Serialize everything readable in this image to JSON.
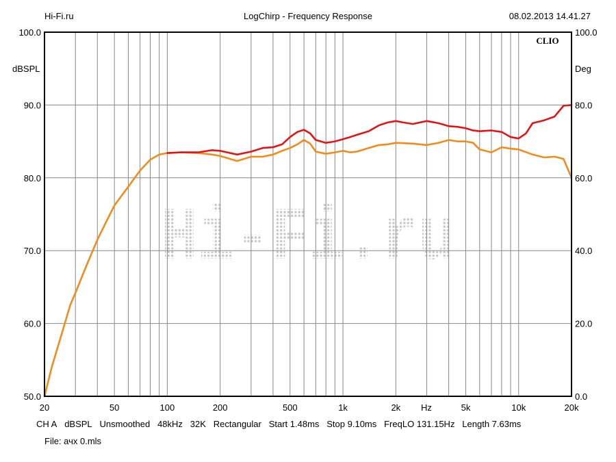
{
  "header": {
    "left": "Hi-Fi.ru",
    "center": "LogChirp - Frequency Response",
    "right": "08.02.2013 14.41.27"
  },
  "brand": "CLIO",
  "watermark_text": "Hi-Fi.ru",
  "axes": {
    "left_unit": "dBSPL",
    "right_unit": "Deg",
    "x_unit": "Hz",
    "left_ticks": [
      "100.0",
      "90.0",
      "80.0",
      "70.0",
      "60.0",
      "50.0"
    ],
    "right_ticks": [
      "100.0",
      "80.0",
      "60.0",
      "40.0",
      "20.0",
      "0.0"
    ],
    "x_ticks": [
      "20",
      "50",
      "100",
      "200",
      "500",
      "1k",
      "2k",
      "5k",
      "10k",
      "20k"
    ]
  },
  "footer": {
    "params": [
      "CH A",
      "dBSPL",
      "Unsmoothed",
      "48kHz",
      "32K",
      "Rectangular",
      "Start 1.48ms",
      "Stop 9.10ms",
      "FreqLO 131.15Hz",
      "Length 7.63ms"
    ],
    "file": "File: ачх 0.mls"
  },
  "colors": {
    "red_series": "#e01515",
    "orange_series": "#f08c1e",
    "grid": "#888888",
    "frame": "#000000"
  },
  "chart_data": {
    "type": "line",
    "title": "LogChirp - Frequency Response",
    "xscale": "log",
    "xlim": [
      20,
      20000
    ],
    "ylim": [
      50,
      100
    ],
    "y2lim": [
      0,
      100
    ],
    "xlabel": "Hz",
    "ylabel": "dBSPL",
    "y2label": "Deg",
    "grid": true,
    "series": [
      {
        "color": "#e01515",
        "x": [
          100,
          120,
          150,
          180,
          200,
          250,
          300,
          350,
          400,
          450,
          500,
          550,
          600,
          650,
          700,
          800,
          900,
          1000,
          1100,
          1200,
          1400,
          1600,
          1800,
          2000,
          2200,
          2500,
          3000,
          3500,
          4000,
          4500,
          5000,
          5500,
          6000,
          7000,
          8000,
          9000,
          10000,
          11000,
          12000,
          14000,
          16000,
          18000,
          20000
        ],
        "y": [
          83.4,
          83.5,
          83.5,
          83.8,
          83.7,
          83.2,
          83.6,
          84.1,
          84.2,
          84.6,
          85.6,
          86.3,
          86.6,
          86.1,
          85.2,
          84.8,
          85.0,
          85.3,
          85.6,
          85.9,
          86.4,
          87.2,
          87.6,
          87.8,
          87.6,
          87.4,
          87.8,
          87.5,
          87.1,
          87.0,
          86.8,
          86.5,
          86.4,
          86.5,
          86.3,
          85.6,
          85.4,
          86.1,
          87.5,
          87.9,
          88.4,
          89.9,
          90.0
        ]
      },
      {
        "color": "#f08c1e",
        "x": [
          20,
          22,
          25,
          28,
          30,
          35,
          40,
          45,
          50,
          60,
          70,
          80,
          90,
          100,
          120,
          150,
          180,
          200,
          250,
          300,
          350,
          400,
          450,
          500,
          550,
          600,
          650,
          700,
          800,
          900,
          1000,
          1100,
          1200,
          1400,
          1600,
          1800,
          2000,
          2500,
          3000,
          3500,
          4000,
          4500,
          5000,
          5500,
          6000,
          7000,
          8000,
          9000,
          10000,
          12000,
          14000,
          16000,
          18000,
          20000
        ],
        "y": [
          50.0,
          54.0,
          58.5,
          62.5,
          64.2,
          68.2,
          71.5,
          74.0,
          76.2,
          78.8,
          81.0,
          82.5,
          83.2,
          83.4,
          83.5,
          83.4,
          83.2,
          83.0,
          82.3,
          82.9,
          82.9,
          83.2,
          83.7,
          84.1,
          84.6,
          85.2,
          84.7,
          83.6,
          83.3,
          83.5,
          83.7,
          83.5,
          83.6,
          84.1,
          84.5,
          84.6,
          84.8,
          84.7,
          84.5,
          84.8,
          85.2,
          85.0,
          85.0,
          84.8,
          83.9,
          83.5,
          84.2,
          84.0,
          83.9,
          83.2,
          82.8,
          82.9,
          82.6,
          80.0
        ]
      }
    ]
  }
}
